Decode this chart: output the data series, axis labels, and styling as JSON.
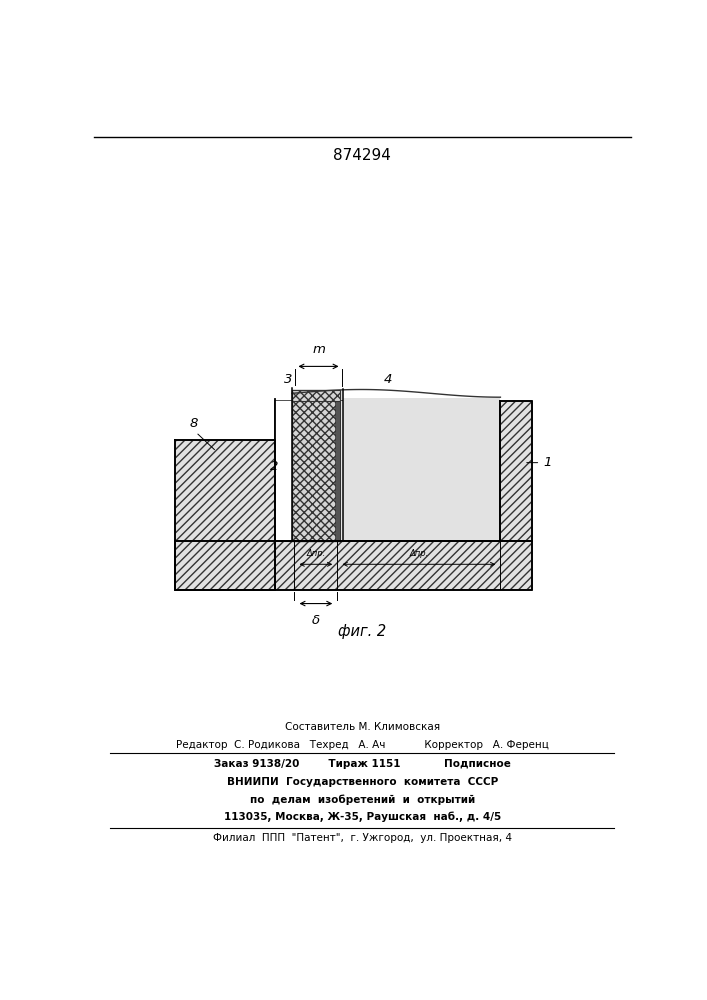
{
  "patent_number": "874294",
  "fig_label": "фиг. 2",
  "bg_color": "#ffffff",
  "hatch_color": "#333333",
  "line_color": "#000000",
  "footer_line1": "Составитель М. Климовская",
  "footer_line2": "Редактор  С. Родикова   Техред   А. Ач            Корректор   А. Ференц",
  "footer_line3": "Заказ 9138/20        Тираж 1151            Подписное",
  "footer_line4": "ВНИИПИ  Государственного  комитета  СССР",
  "footer_line5": "по  делам  изобретений  и  открытий",
  "footer_line6": "113035, Москва, Ж-35, Раушская  наб., д. 4/5",
  "footer_line7": "Филиал  ППП  \"Патент\",  г. Ужгород,  ул. Проектная, 4"
}
